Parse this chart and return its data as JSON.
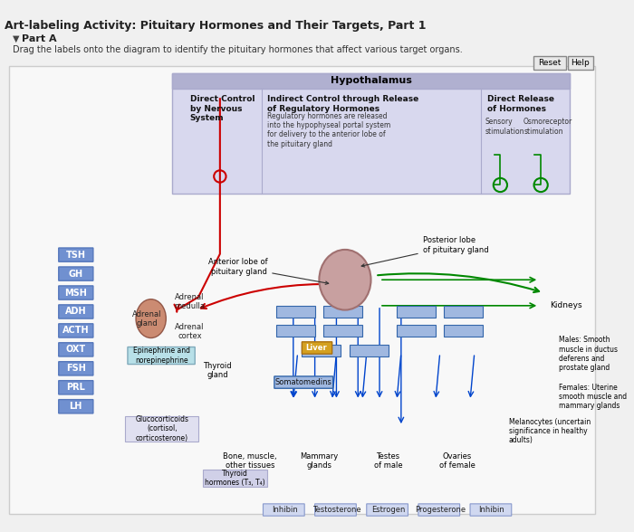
{
  "title": "Art-labeling Activity: Pituitary Hormones and Their Targets, Part 1",
  "part_label": "Part A",
  "instruction": "Drag the labels onto the diagram to identify the pituitary hormones that affect various target organs.",
  "bg_color": "#f0f0f0",
  "panel_bg": "#ffffff",
  "header_bg": "#c8c8e8",
  "hypothalamus_label": "Hypothalamus",
  "hypothalamus_box_color": "#b8b8d8",
  "col1_header": "Direct Control\nby Nervous\nSystem",
  "col2_header": "Indirect Control through Release\nof Regulatory Hormones",
  "col2_body": "Regulatory hormones are released\ninto the hypophyseal portal system\nfor delivery to the anterior lobe of\nthe pituitary gland",
  "col3_header": "Direct Release\nof Hormones",
  "col3_sub1": "Sensory\nstimulation",
  "col3_sub2": "Osmoreceptor\nstimulation",
  "label_buttons": [
    "TSH",
    "GH",
    "MSH",
    "ADH",
    "ACTH",
    "OXT",
    "FSH",
    "PRL",
    "LH"
  ],
  "label_btn_color": "#7090d0",
  "label_btn_text_color": "#ffffff",
  "annotations": [
    "Adrenal\nmedulla",
    "Adrenal\ngland",
    "Adrenal\ncortex",
    "Epinephrine and\nnorepinephrine",
    "Thyroid\ngland",
    "Liver",
    "Somatomedins",
    "Glucocorticoids\n(cortisol,\ncorticosterone)",
    "Bone, muscle,\nother tissues",
    "Mammary\nglands",
    "Testes\nof male",
    "Ovaries\nof female",
    "Thyroid\nhormones (T₃, T₄)",
    "Anterior lobe of\npituitary gland",
    "Posterior lobe\nof pituitary gland",
    "Kidneys",
    "Males: Smooth\nmuscle in ductus\ndeferens and\nprostate gland",
    "Females: Uterine\nsmooth muscle and\nmammary glands",
    "Melanocytes (uncertain\nsignificance in healthy\nadults)"
  ],
  "bottom_labels": [
    "Inhibin",
    "Testosterone",
    "Estrogen",
    "Progesterone",
    "Inhibin"
  ],
  "reset_btn": "Reset",
  "help_btn": "Help",
  "arrow_color_red": "#cc0000",
  "arrow_color_green": "#008800",
  "arrow_color_blue": "#0044cc",
  "box_fill_blue": "#a0b8e0",
  "pituitary_color": "#d4a0a0",
  "diagram_bg": "#e8e8f0"
}
